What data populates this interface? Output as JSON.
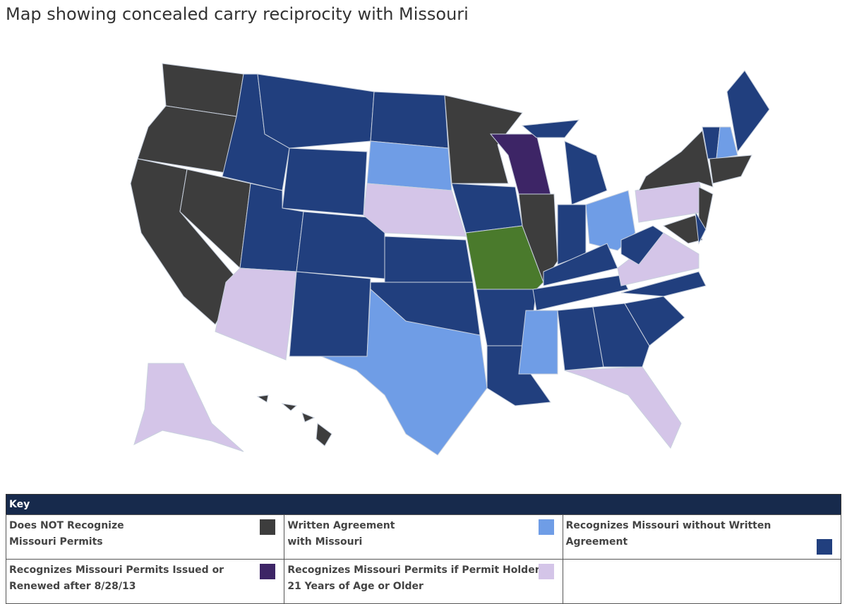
{
  "title": "Map showing concealed carry reciprocity with Missouri",
  "key": {
    "title": "Key",
    "items": [
      {
        "lines": [
          "Does NOT Recognize",
          "Missouri Permits"
        ],
        "color": "#3d3d3d"
      },
      {
        "lines": [
          "Written Agreement",
          "with Missouri"
        ],
        "color": "#6f9de6"
      },
      {
        "lines": [
          "Recognizes Missouri without Written",
          "Agreement"
        ],
        "color": "#213f7e"
      },
      {
        "lines": [
          "Recognizes Missouri Permits Issued or",
          "Renewed after 8/28/13"
        ],
        "color": "#3d2566"
      },
      {
        "lines": [
          "Recognizes Missouri Permits if Permit Holder is",
          "21 Years of Age or Older"
        ],
        "color": "#d4c5e8"
      }
    ]
  }
}
